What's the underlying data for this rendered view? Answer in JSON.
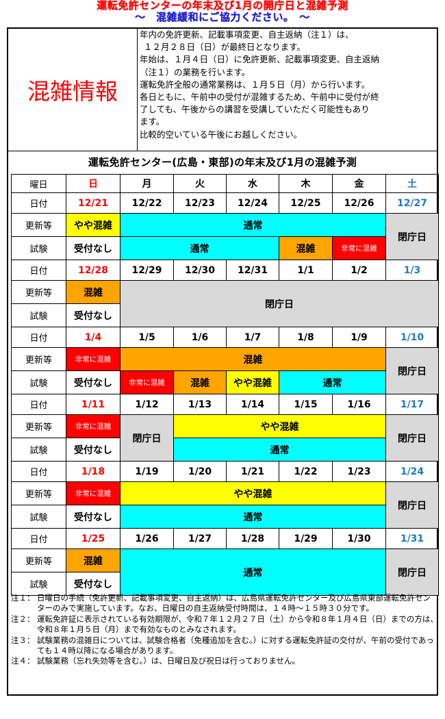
{
  "header": {
    "title_line1": "運転免許センターの年末及び1月の開庁日と混雑予測",
    "title_line2": "～　混雑緩和にご協力ください。　～"
  },
  "info": {
    "heading": "混雑情報",
    "lines": [
      "年内の免許更新、記載事項変更、自主返納（注１）は、",
      "１２月２８日（日）が最終日となります。",
      "年始は、１月４日（日）に免許更新、記載事項変更、自主返納",
      "（注１）の業務を行います。",
      "運転免許全般の通常業務は、１月５日（月）から行います。",
      "各日ともに、午前中の受付が混雑するため、午前中に受付が終",
      "了しても、午後からの講習を受講していただく可能性もあり",
      "ます。",
      "比較的空いている午後にお越しください。"
    ]
  },
  "table": {
    "title": "運転免許センター(広島・東部)の年末及び1月の混雑予測",
    "labels": {
      "weekday": "曜日",
      "date": "日付",
      "renewal": "更新等",
      "exam": "試験"
    },
    "weekdays": [
      "日",
      "月",
      "火",
      "水",
      "木",
      "金",
      "土"
    ],
    "weeks": [
      [
        "12/21",
        "12/22",
        "12/23",
        "12/24",
        "12/25",
        "12/26",
        "12/27"
      ],
      [
        "12/28",
        "12/29",
        "12/30",
        "12/31",
        "1/1",
        "1/2",
        "1/3"
      ],
      [
        "1/4",
        "1/5",
        "1/6",
        "1/7",
        "1/8",
        "1/9",
        "1/10"
      ],
      [
        "1/11",
        "1/12",
        "1/13",
        "1/14",
        "1/15",
        "1/16",
        "1/17"
      ],
      [
        "1/18",
        "1/19",
        "1/20",
        "1/21",
        "1/22",
        "1/23",
        "1/24"
      ],
      [
        "1/25",
        "1/26",
        "1/27",
        "1/28",
        "1/29",
        "1/30",
        "1/31"
      ]
    ],
    "status": {
      "normal": "通常",
      "closed": "閉庁日",
      "busy": "混雑",
      "somewhat_busy": "やや混雑",
      "very_busy": "非常に混雑",
      "no_reception": "受付なし"
    },
    "colors": {
      "normal": "#00ffff",
      "closed": "#d9d9d9",
      "busy": "#ffa500",
      "somewhat_busy": "#ffff00",
      "very_busy": "#ff0000",
      "sunday_text": "#ff0000",
      "saturday_text": "#1f78c8"
    }
  },
  "notes": [
    {
      "key": "注１：",
      "text": "日曜日の手続（免許更新、記載事項変更、自主返納）は、広島県運転免許センター及び広島県東部運転免許センターのみで実施しています。なお、日曜日の自主返納受付時間は、１４時～１５時３０分です。"
    },
    {
      "key": "注２：",
      "text": "運転免許証に表示されている有効期限が、令和７年１２月２７日（土）から令和８年１月４日（日）までの方は、令和８年１月５日（月）まで有効なものとみなされます。"
    },
    {
      "key": "注３：",
      "text": "試験業務の混雑日については、試験合格者（免種追加を含む。）に対する運転免許証の交付が、午前の受付であっても１４時以降になる場合があります。"
    },
    {
      "key": "注４：",
      "text": "試験業務（忘れ失効等を含む。）は、日曜日及び祝日は行っておりません。"
    }
  ]
}
